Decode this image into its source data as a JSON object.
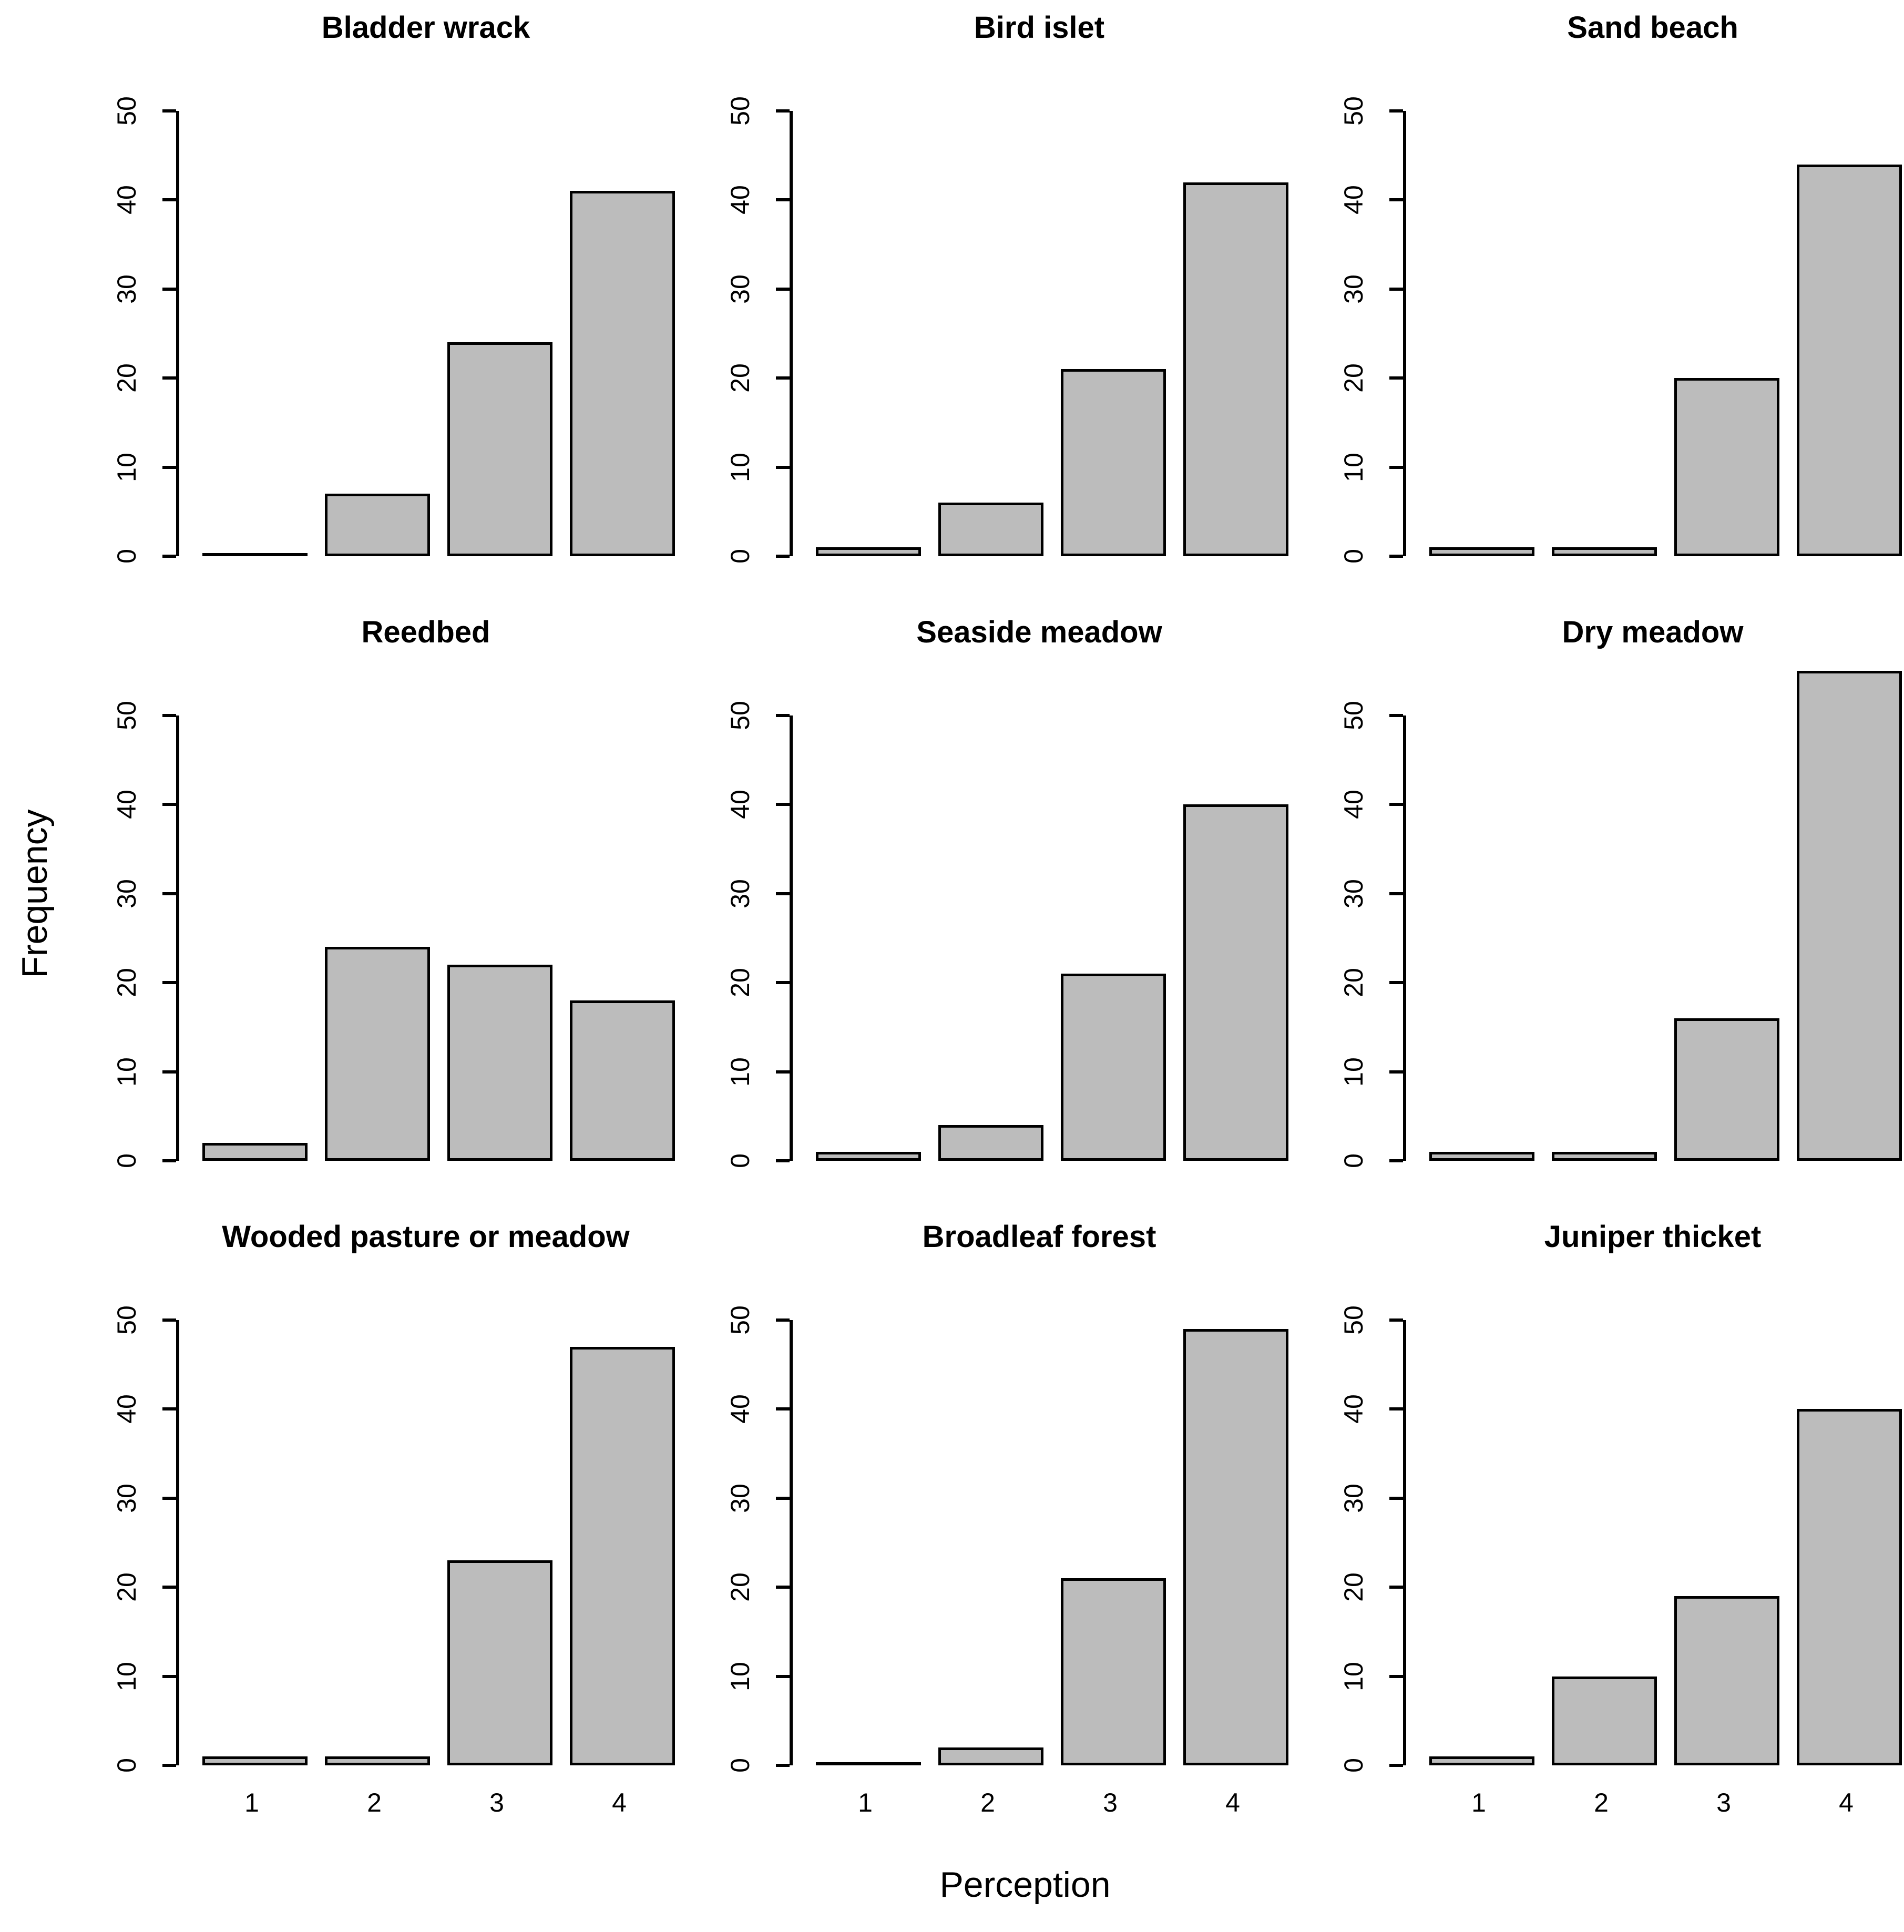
{
  "labels": {
    "y": "Frequency",
    "x": "Perception"
  },
  "axis": {
    "y_ticks": [
      0,
      10,
      20,
      30,
      40,
      50
    ],
    "y_max": 50,
    "x_ticks": [
      "1",
      "2",
      "3",
      "4"
    ]
  },
  "colors": {
    "bar_fill": "#bcbcbc",
    "bar_border": "#000000",
    "text": "#000000",
    "background": "#ffffff"
  },
  "layout": {
    "grid": "3x3",
    "x_tick_labels_bottom_row_only": true
  },
  "chart_data": [
    {
      "type": "bar",
      "title": "Bladder wrack",
      "categories": [
        "1",
        "2",
        "3",
        "4"
      ],
      "values": [
        0,
        7,
        24,
        41
      ],
      "ylim": [
        0,
        50
      ]
    },
    {
      "type": "bar",
      "title": "Bird islet",
      "categories": [
        "1",
        "2",
        "3",
        "4"
      ],
      "values": [
        1,
        6,
        21,
        42
      ],
      "ylim": [
        0,
        50
      ]
    },
    {
      "type": "bar",
      "title": "Sand beach",
      "categories": [
        "1",
        "2",
        "3",
        "4"
      ],
      "values": [
        1,
        1,
        20,
        44
      ],
      "ylim": [
        0,
        50
      ]
    },
    {
      "type": "bar",
      "title": "Reedbed",
      "categories": [
        "1",
        "2",
        "3",
        "4"
      ],
      "values": [
        2,
        24,
        22,
        18
      ],
      "ylim": [
        0,
        50
      ]
    },
    {
      "type": "bar",
      "title": "Seaside meadow",
      "categories": [
        "1",
        "2",
        "3",
        "4"
      ],
      "values": [
        1,
        4,
        21,
        40
      ],
      "ylim": [
        0,
        50
      ]
    },
    {
      "type": "bar",
      "title": "Dry meadow",
      "categories": [
        "1",
        "2",
        "3",
        "4"
      ],
      "values": [
        1,
        1,
        16,
        55
      ],
      "ylim": [
        0,
        50
      ]
    },
    {
      "type": "bar",
      "title": "Wooded pasture or meadow",
      "categories": [
        "1",
        "2",
        "3",
        "4"
      ],
      "values": [
        1,
        1,
        23,
        47
      ],
      "ylim": [
        0,
        50
      ]
    },
    {
      "type": "bar",
      "title": "Broadleaf forest",
      "categories": [
        "1",
        "2",
        "3",
        "4"
      ],
      "values": [
        0,
        2,
        21,
        49
      ],
      "ylim": [
        0,
        50
      ]
    },
    {
      "type": "bar",
      "title": "Juniper thicket",
      "categories": [
        "1",
        "2",
        "3",
        "4"
      ],
      "values": [
        1,
        10,
        19,
        40
      ],
      "ylim": [
        0,
        50
      ]
    }
  ]
}
